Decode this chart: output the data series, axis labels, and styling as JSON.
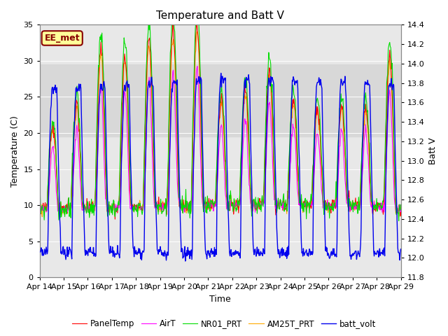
{
  "title": "Temperature and Batt V",
  "xlabel": "Time",
  "ylabel_left": "Temperature (C)",
  "ylabel_right": "Batt V",
  "ylim_left": [
    0,
    35
  ],
  "ylim_right": [
    11.8,
    14.4
  ],
  "xlim_days": 15,
  "xtick_labels": [
    "Apr 14",
    "Apr 15",
    "Apr 16",
    "Apr 17",
    "Apr 18",
    "Apr 19",
    "Apr 20",
    "Apr 21",
    "Apr 22",
    "Apr 23",
    "Apr 24",
    "Apr 25",
    "Apr 26",
    "Apr 27",
    "Apr 28",
    "Apr 29"
  ],
  "legend_labels": [
    "PanelTemp",
    "AirT",
    "NR01_PRT",
    "AM25T_PRT",
    "batt_volt"
  ],
  "legend_colors": [
    "#ff0000",
    "#ff00ff",
    "#00dd00",
    "#ffaa00",
    "#0000ee"
  ],
  "annotation_text": "EE_met",
  "annotation_fg": "#880000",
  "annotation_bg": "#ffff99",
  "shaded_ylow": 19.5,
  "shaded_yhigh": 29.5,
  "shaded_color": "#d8d8d8",
  "plot_bg": "#e8e8e8",
  "fig_bg": "#ffffff",
  "title_fontsize": 11,
  "axis_label_fontsize": 9,
  "tick_fontsize": 8,
  "legend_fontsize": 8.5,
  "line_width": 0.8
}
